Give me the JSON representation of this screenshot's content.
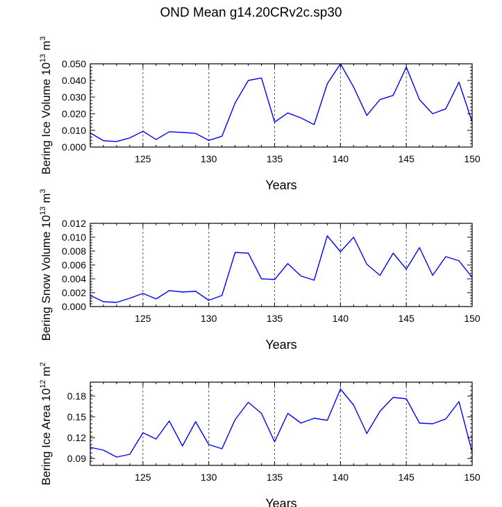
{
  "title": "OND Mean g14.20CRv2c.sp30",
  "colors": {
    "line": "#0000ff",
    "axis": "#000000",
    "grid": "#555555"
  },
  "chart_data": [
    {
      "type": "line",
      "title": "",
      "xlabel": "Years",
      "ylabel": "Bering Ice Volume",
      "yunit_base": "10",
      "yunit_exp": "13",
      "yunit_unit": "m",
      "yunit_unit_exp": "3",
      "xlim": [
        121,
        150
      ],
      "ylim": [
        0,
        0.05
      ],
      "xticks": [
        125,
        130,
        135,
        140,
        145,
        150
      ],
      "xtick_labels": [
        "125",
        "130",
        "135",
        "140",
        "145",
        "150"
      ],
      "yticks": [
        0,
        0.01,
        0.02,
        0.03,
        0.04,
        0.05
      ],
      "ytick_labels": [
        "0.000",
        "0.010",
        "0.020",
        "0.030",
        "0.040",
        "0.050"
      ],
      "vlines": [
        125,
        130,
        135,
        140,
        145
      ],
      "x": [
        121,
        122,
        123,
        124,
        125,
        126,
        127,
        128,
        129,
        130,
        131,
        132,
        133,
        134,
        135,
        136,
        137,
        138,
        139,
        140,
        141,
        142,
        143,
        144,
        145,
        146,
        147,
        148,
        149,
        150
      ],
      "values": [
        0.0085,
        0.0038,
        0.0033,
        0.0055,
        0.0095,
        0.0045,
        0.0092,
        0.0088,
        0.0082,
        0.004,
        0.0065,
        0.0265,
        0.04,
        0.0415,
        0.015,
        0.0205,
        0.0175,
        0.0135,
        0.038,
        0.05,
        0.036,
        0.019,
        0.0285,
        0.031,
        0.048,
        0.0285,
        0.02,
        0.023,
        0.039,
        0.015
      ]
    },
    {
      "type": "line",
      "title": "",
      "xlabel": "Years",
      "ylabel": "Bering Snow Volume",
      "yunit_base": "10",
      "yunit_exp": "13",
      "yunit_unit": "m",
      "yunit_unit_exp": "3",
      "xlim": [
        121,
        150
      ],
      "ylim": [
        0,
        0.012
      ],
      "xticks": [
        125,
        130,
        135,
        140,
        145,
        150
      ],
      "xtick_labels": [
        "125",
        "130",
        "135",
        "140",
        "145",
        "150"
      ],
      "yticks": [
        0,
        0.002,
        0.004,
        0.006,
        0.008,
        0.01,
        0.012
      ],
      "ytick_labels": [
        "0.000",
        "0.002",
        "0.004",
        "0.006",
        "0.008",
        "0.010",
        "0.012"
      ],
      "vlines": [
        125,
        130,
        135,
        140,
        145
      ],
      "x": [
        121,
        122,
        123,
        124,
        125,
        126,
        127,
        128,
        129,
        130,
        131,
        132,
        133,
        134,
        135,
        136,
        137,
        138,
        139,
        140,
        141,
        142,
        143,
        144,
        145,
        146,
        147,
        148,
        149,
        150
      ],
      "values": [
        0.0016,
        0.0007,
        0.0006,
        0.0012,
        0.0019,
        0.0011,
        0.0023,
        0.0021,
        0.0022,
        0.0009,
        0.0016,
        0.0078,
        0.0077,
        0.004,
        0.0039,
        0.0062,
        0.0044,
        0.0038,
        0.0102,
        0.0079,
        0.01,
        0.0061,
        0.0045,
        0.0077,
        0.0054,
        0.0085,
        0.0045,
        0.0072,
        0.0066,
        0.0042
      ]
    },
    {
      "type": "line",
      "title": "",
      "xlabel": "Years",
      "ylabel": "Bering Ice Area",
      "yunit_base": "10",
      "yunit_exp": "12",
      "yunit_unit": "m",
      "yunit_unit_exp": "2",
      "xlim": [
        121,
        150
      ],
      "ylim": [
        0.08,
        0.2
      ],
      "xticks": [
        125,
        130,
        135,
        140,
        145,
        150
      ],
      "xtick_labels": [
        "125",
        "130",
        "135",
        "140",
        "145",
        "150"
      ],
      "yticks": [
        0.09,
        0.12,
        0.15,
        0.18
      ],
      "ytick_labels": [
        "0.09",
        "0.12",
        "0.15",
        "0.18"
      ],
      "vlines": [
        125,
        130,
        135,
        140,
        145
      ],
      "x": [
        121,
        122,
        123,
        124,
        125,
        126,
        127,
        128,
        129,
        130,
        131,
        132,
        133,
        134,
        135,
        136,
        137,
        138,
        139,
        140,
        141,
        142,
        143,
        144,
        145,
        146,
        147,
        148,
        149,
        150
      ],
      "values": [
        0.106,
        0.102,
        0.092,
        0.096,
        0.127,
        0.118,
        0.144,
        0.108,
        0.143,
        0.11,
        0.104,
        0.146,
        0.171,
        0.155,
        0.114,
        0.155,
        0.141,
        0.148,
        0.145,
        0.19,
        0.167,
        0.126,
        0.158,
        0.178,
        0.176,
        0.141,
        0.14,
        0.147,
        0.172,
        0.099
      ]
    }
  ]
}
